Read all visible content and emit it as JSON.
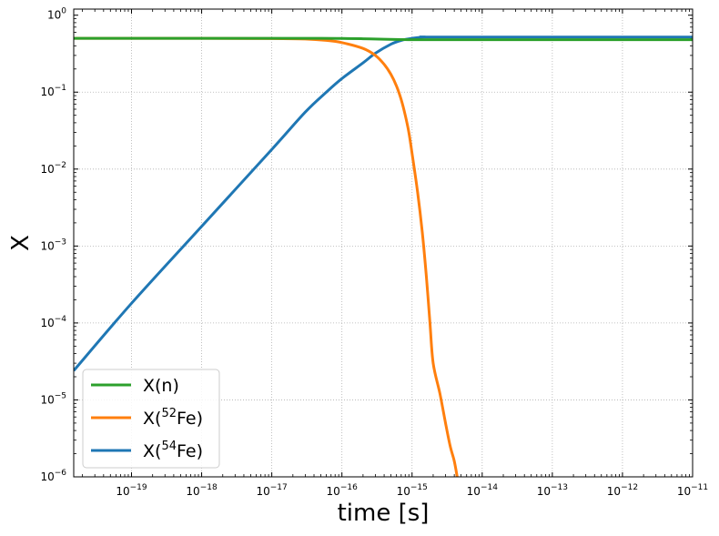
{
  "chart_data": {
    "type": "line",
    "title": "",
    "xlabel": "time [s]",
    "ylabel": "X",
    "xscale": "log",
    "yscale": "log",
    "xlim": [
      1.5e-20,
      1e-11
    ],
    "ylim": [
      1e-06,
      1.2
    ],
    "grid": true,
    "legend_position": "lower-left",
    "x_ticks": [
      {
        "base": "10",
        "exp": "−19"
      },
      {
        "base": "10",
        "exp": "−18"
      },
      {
        "base": "10",
        "exp": "−17"
      },
      {
        "base": "10",
        "exp": "−16"
      },
      {
        "base": "10",
        "exp": "−15"
      },
      {
        "base": "10",
        "exp": "−14"
      },
      {
        "base": "10",
        "exp": "−13"
      },
      {
        "base": "10",
        "exp": "−12"
      },
      {
        "base": "10",
        "exp": "−11"
      }
    ],
    "y_ticks": [
      {
        "base": "10",
        "exp": "0"
      },
      {
        "base": "10",
        "exp": "−1"
      },
      {
        "base": "10",
        "exp": "−2"
      },
      {
        "base": "10",
        "exp": "−3"
      },
      {
        "base": "10",
        "exp": "−4"
      },
      {
        "base": "10",
        "exp": "−5"
      },
      {
        "base": "10",
        "exp": "−6"
      }
    ],
    "series": [
      {
        "legend_prefix": "X(n)",
        "legend_sup": "",
        "legend_suffix": "",
        "color": "#2ca02c",
        "points": [
          [
            1.5e-20,
            0.5
          ],
          [
            1e-19,
            0.5
          ],
          [
            1e-18,
            0.5
          ],
          [
            1e-17,
            0.5
          ],
          [
            5e-17,
            0.5
          ],
          [
            1e-16,
            0.498
          ],
          [
            2e-16,
            0.494
          ],
          [
            4e-16,
            0.487
          ],
          [
            7e-16,
            0.482
          ],
          [
            1e-15,
            0.48
          ],
          [
            2e-15,
            0.48
          ],
          [
            1e-11,
            0.48
          ]
        ]
      },
      {
        "legend_prefix": "X(",
        "legend_sup": "52",
        "legend_suffix": "Fe)",
        "color": "#ff7f0e",
        "points": [
          [
            1.5e-20,
            0.5
          ],
          [
            1e-18,
            0.5
          ],
          [
            1e-17,
            0.497
          ],
          [
            3e-17,
            0.49
          ],
          [
            6e-17,
            0.47
          ],
          [
            1e-16,
            0.44
          ],
          [
            2e-16,
            0.37
          ],
          [
            3e-16,
            0.3
          ],
          [
            4e-16,
            0.23
          ],
          [
            5e-16,
            0.17
          ],
          [
            6e-16,
            0.12
          ],
          [
            7e-16,
            0.08
          ],
          [
            8e-16,
            0.05
          ],
          [
            9e-16,
            0.03
          ],
          [
            1e-15,
            0.016
          ],
          [
            1.2e-15,
            0.005
          ],
          [
            1.4e-15,
            0.0015
          ],
          [
            1.6e-15,
            0.0004
          ],
          [
            1.8e-15,
            0.0001
          ],
          [
            2e-15,
            3e-05
          ],
          [
            2.5e-15,
            1.2e-05
          ],
          [
            3e-15,
            5e-06
          ],
          [
            3.5e-15,
            2.5e-06
          ],
          [
            4e-15,
            1.6e-06
          ],
          [
            4.4e-15,
            1e-06
          ]
        ]
      },
      {
        "legend_prefix": "X(",
        "legend_sup": "54",
        "legend_suffix": "Fe)",
        "color": "#1f77b4",
        "points": [
          [
            1.5e-20,
            2.4e-05
          ],
          [
            1e-19,
            0.00018
          ],
          [
            1e-18,
            0.0018
          ],
          [
            1e-17,
            0.018
          ],
          [
            3e-17,
            0.055
          ],
          [
            6e-17,
            0.1
          ],
          [
            1e-16,
            0.15
          ],
          [
            2e-16,
            0.24
          ],
          [
            3e-16,
            0.32
          ],
          [
            5e-16,
            0.42
          ],
          [
            7e-16,
            0.47
          ],
          [
            1e-15,
            0.5
          ],
          [
            1.5e-15,
            0.52
          ],
          [
            3e-15,
            0.52
          ],
          [
            1e-11,
            0.52
          ]
        ]
      }
    ]
  }
}
